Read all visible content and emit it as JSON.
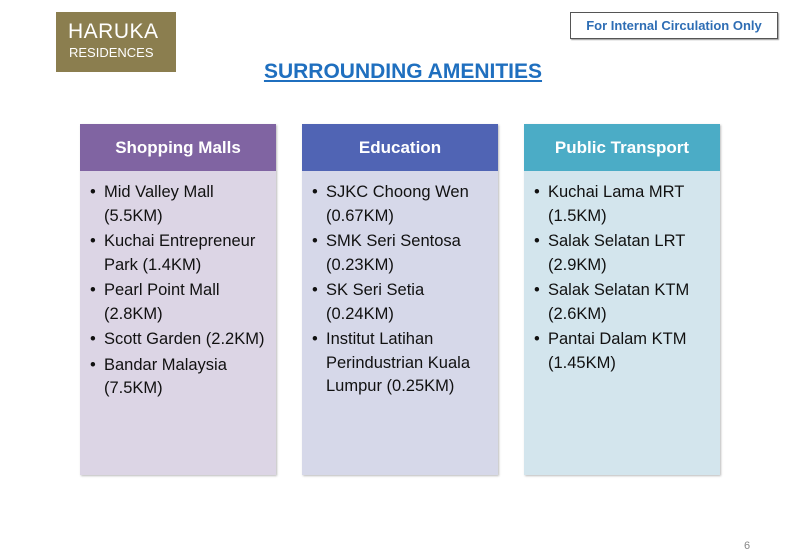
{
  "logo": {
    "line1": "HARUKA",
    "line2": "RESIDENCES",
    "color": "#8b7e4f"
  },
  "notice": "For Internal Circulation Only",
  "title": "SURROUNDING AMENITIES",
  "columns": [
    {
      "header": "Shopping Malls",
      "header_color": "#8064a2",
      "body_color": "#dcd5e5",
      "items": [
        "Mid Valley Mall (5.5KM)",
        "Kuchai Entrepreneur Park (1.4KM)",
        "Pearl Point Mall (2.8KM)",
        "Scott Garden (2.2KM)",
        "Bandar Malaysia (7.5KM)"
      ]
    },
    {
      "header": "Education",
      "header_color": "#5064b4",
      "body_color": "#d6d8e9",
      "items": [
        "SJKC Choong Wen (0.67KM)",
        "SMK Seri Sentosa (0.23KM)",
        "SK Seri Setia (0.24KM)",
        "Institut Latihan Perindustrian Kuala Lumpur (0.25KM)"
      ]
    },
    {
      "header": "Public Transport",
      "header_color": "#4bacc6",
      "body_color": "#d3e5ed",
      "items": [
        "Kuchai Lama MRT (1.5KM)",
        "Salak Selatan LRT (2.9KM)",
        "Salak Selatan KTM (2.6KM)",
        "Pantai Dalam KTM (1.45KM)"
      ]
    }
  ],
  "page_number": "6"
}
